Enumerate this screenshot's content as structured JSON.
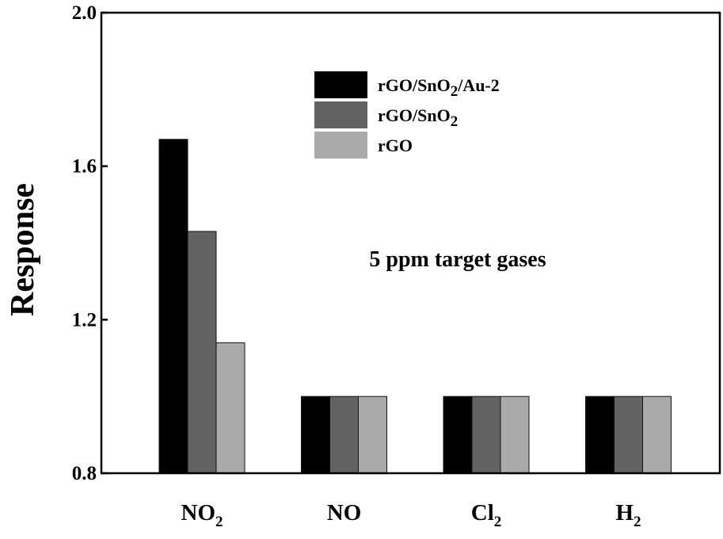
{
  "chart_data": {
    "type": "bar",
    "ylabel": "Response",
    "xlabel": "",
    "ylim": [
      0.8,
      2.0
    ],
    "yticks": [
      "0.8",
      "1.2",
      "1.6",
      "2.0"
    ],
    "categories": [
      {
        "main": "NO",
        "sub": "2"
      },
      {
        "main": "NO",
        "sub": ""
      },
      {
        "main": "Cl",
        "sub": "2"
      },
      {
        "main": "H",
        "sub": "2"
      }
    ],
    "series": [
      {
        "name": "rGO/SnO2/Au-2",
        "parts": [
          {
            "t": "rGO/SnO"
          },
          {
            "t": "2",
            "sub": true
          },
          {
            "t": "/Au-2"
          }
        ],
        "color": "#000000",
        "values": [
          1.67,
          1.0,
          1.0,
          1.0
        ]
      },
      {
        "name": "rGO/SnO2",
        "parts": [
          {
            "t": "rGO/SnO"
          },
          {
            "t": "2",
            "sub": true
          }
        ],
        "color": "#636363",
        "values": [
          1.43,
          1.0,
          1.0,
          1.0
        ]
      },
      {
        "name": "rGO",
        "parts": [
          {
            "t": "rGO"
          }
        ],
        "color": "#aaaaaa",
        "values": [
          1.14,
          1.0,
          1.0,
          1.0
        ]
      }
    ],
    "annotation": "5 ppm target gases",
    "legend_position": "top-right",
    "grid": false
  }
}
